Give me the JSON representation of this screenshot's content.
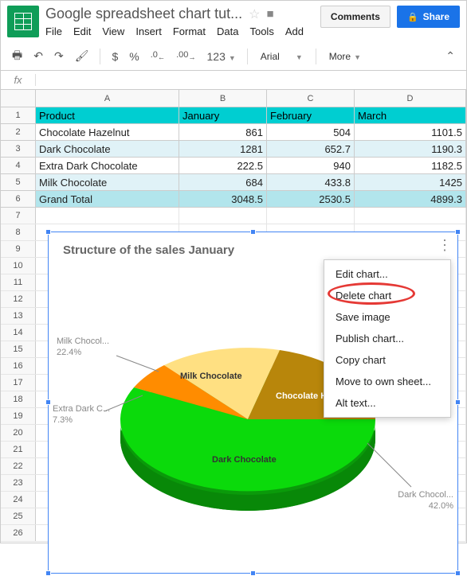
{
  "doc_title": "Google spreadsheet chart tut...",
  "menu": {
    "file": "File",
    "edit": "Edit",
    "view": "View",
    "insert": "Insert",
    "format": "Format",
    "data": "Data",
    "tools": "Tools",
    "add": "Add"
  },
  "buttons": {
    "comments": "Comments",
    "share": "Share"
  },
  "toolbar": {
    "dollar": "$",
    "percent": "%",
    "dec0": ".0",
    "dec00": ".00",
    "num": "123",
    "font": "Arial",
    "more": "More"
  },
  "cols": [
    "A",
    "B",
    "C",
    "D"
  ],
  "table": {
    "header": [
      "Product",
      "January",
      "February",
      "March"
    ],
    "rows": [
      [
        "Chocolate Hazelnut",
        "861",
        "504",
        "1101.5"
      ],
      [
        "Dark Chocolate",
        "1281",
        "652.7",
        "1190.3"
      ],
      [
        "Extra Dark Chocolate",
        "222.5",
        "940",
        "1182.5"
      ],
      [
        "Milk Chocolate",
        "684",
        "433.8",
        "1425"
      ],
      [
        "Grand Total",
        "3048.5",
        "2530.5",
        "4899.3"
      ]
    ]
  },
  "chart": {
    "title": "Structure of the sales January",
    "slices": [
      {
        "name": "Milk Chocolate",
        "pct": "22.4%",
        "color": "#ffe082",
        "label_color": "#333"
      },
      {
        "name": "Chocolate Hazelnut",
        "pct": "28.3%",
        "short": "Chocolate H",
        "color": "#b8860b",
        "label_color": "#fff"
      },
      {
        "name": "Dark Chocolate",
        "pct": "42.0%",
        "color": "#0bda0b",
        "label_color": "#333"
      },
      {
        "name": "Extra Dark Chocolate",
        "pct": "7.3%",
        "short": "Extra Dark C...",
        "color": "#ff8c00",
        "label_color": "#333"
      }
    ],
    "ext_labels": {
      "milk": {
        "l1": "Milk Chocol...",
        "l2": "22.4%"
      },
      "extra": {
        "l1": "Extra Dark C...",
        "l2": "7.3%"
      },
      "dark": {
        "l1": "Dark Chocol...",
        "l2": "42.0%"
      }
    }
  },
  "ctx": [
    "Edit chart...",
    "Delete chart",
    "Save image",
    "Publish chart...",
    "Copy chart",
    "Move to own sheet...",
    "Alt text..."
  ],
  "highlight_index": 1
}
